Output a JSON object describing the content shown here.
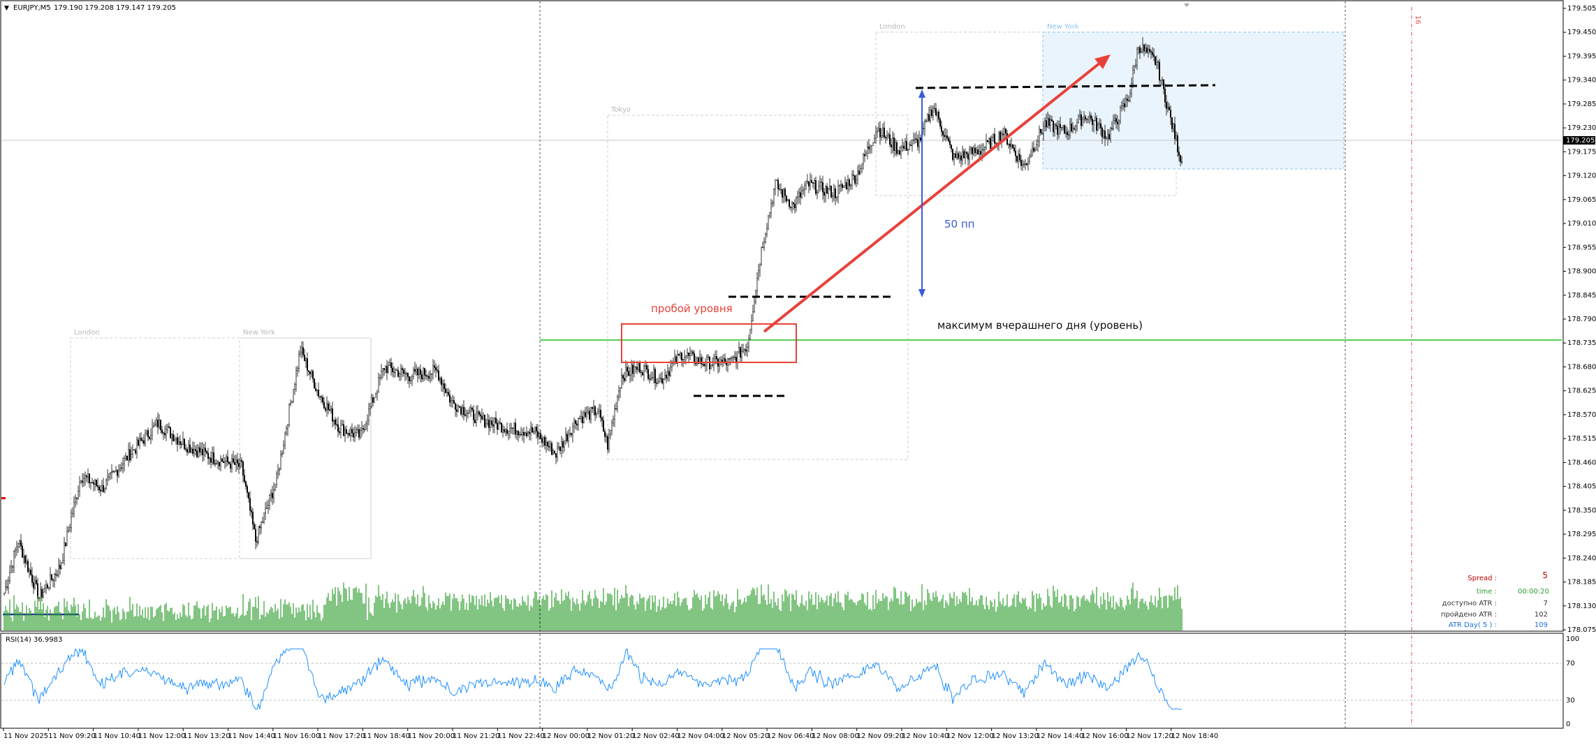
{
  "header": {
    "symbol": "EURJPY,M5",
    "ohlc": "179.190 179.208 179.147 179.205"
  },
  "colors": {
    "up_candle": "#000000",
    "volume": "#2e9e2e",
    "rsi": "#1e90ff",
    "yesterday_high_line": "#22bb22",
    "annotation_red": "#e8413a",
    "annotation_blue": "#3a5bd9",
    "session_ny_fill": "#eaf4fc"
  },
  "price_axis": {
    "ticks": [
      "179.505",
      "179.450",
      "179.395",
      "179.340",
      "179.285",
      "179.230",
      "179.175",
      "179.120",
      "179.065",
      "179.010",
      "178.955",
      "178.900",
      "178.845",
      "178.790",
      "178.735",
      "178.680",
      "178.625",
      "178.570",
      "178.515",
      "178.460",
      "178.405",
      "178.350",
      "178.295",
      "178.240",
      "178.185",
      "178.130",
      "178.075"
    ],
    "current_price": "179.205",
    "range": [
      178.075,
      179.505
    ]
  },
  "time_axis": {
    "labels": [
      "11 Nov 2025",
      "11 Nov 09:20",
      "11 Nov 10:40",
      "11 Nov 12:00",
      "11 Nov 13:20",
      "11 Nov 14:40",
      "11 Nov 16:00",
      "11 Nov 17:20",
      "11 Nov 18:40",
      "11 Nov 20:00",
      "11 Nov 21:20",
      "11 Nov 22:40",
      "12 Nov 00:00",
      "12 Nov 01:20",
      "12 Nov 02:40",
      "12 Nov 04:00",
      "12 Nov 05:20",
      "12 Nov 06:40",
      "12 Nov 08:00",
      "12 Nov 09:20",
      "12 Nov 10:40",
      "12 Nov 12:00",
      "12 Nov 13:20",
      "12 Nov 14:40",
      "12 Nov 16:00",
      "12 Nov 17:20",
      "12 Nov 18:40"
    ]
  },
  "sessions": {
    "day1_london": "London",
    "day1_newyork": "New York",
    "day2_tokyo": "Tokyo",
    "day2_london": "London",
    "day2_newyork": "New York"
  },
  "annotations": {
    "breakout": "пробой уровня",
    "pips": "50 пп",
    "yesterday_high": "максимум вчерашнего дня (уровень)"
  },
  "rsi": {
    "label": "RSI(14) 36.9983",
    "levels": [
      "100",
      "70",
      "30",
      "0"
    ]
  },
  "info_panel": {
    "spread_label": "Spread :",
    "spread_value": "5",
    "time_label": "time :",
    "time_value": "00:00:20",
    "atr_avail_label": "доступно ATR :",
    "atr_avail_value": "7",
    "atr_passed_label": "пройдено ATR :",
    "atr_passed_value": "102",
    "atr_day_label": "ATR Day( 5 ) :",
    "atr_day_value": "109"
  },
  "chart_data": {
    "type": "candlestick",
    "title": "EURJPY,M5",
    "ylim": [
      178.075,
      179.505
    ],
    "keypoints": [
      [
        0,
        178.16
      ],
      [
        10,
        178.28
      ],
      [
        25,
        178.15
      ],
      [
        40,
        178.22
      ],
      [
        55,
        178.43
      ],
      [
        70,
        178.4
      ],
      [
        90,
        178.48
      ],
      [
        110,
        178.55
      ],
      [
        130,
        178.5
      ],
      [
        150,
        178.47
      ],
      [
        170,
        178.45
      ],
      [
        180,
        178.28
      ],
      [
        195,
        178.42
      ],
      [
        212,
        178.72
      ],
      [
        225,
        178.62
      ],
      [
        240,
        178.54
      ],
      [
        255,
        178.52
      ],
      [
        272,
        178.68
      ],
      [
        290,
        178.66
      ],
      [
        310,
        178.67
      ],
      [
        320,
        178.6
      ],
      [
        340,
        178.56
      ],
      [
        360,
        178.54
      ],
      [
        380,
        178.53
      ],
      [
        395,
        178.48
      ],
      [
        410,
        178.56
      ],
      [
        425,
        178.58
      ],
      [
        432,
        178.5
      ],
      [
        442,
        178.66
      ],
      [
        455,
        178.68
      ],
      [
        470,
        178.65
      ],
      [
        485,
        178.71
      ],
      [
        500,
        178.69
      ],
      [
        520,
        178.69
      ],
      [
        532,
        178.73
      ],
      [
        542,
        178.95
      ],
      [
        552,
        179.1
      ],
      [
        565,
        179.05
      ],
      [
        575,
        179.1
      ],
      [
        595,
        179.08
      ],
      [
        610,
        179.12
      ],
      [
        625,
        179.23
      ],
      [
        640,
        179.18
      ],
      [
        655,
        179.2
      ],
      [
        665,
        179.28
      ],
      [
        680,
        179.16
      ],
      [
        700,
        179.18
      ],
      [
        715,
        179.22
      ],
      [
        730,
        179.14
      ],
      [
        745,
        179.24
      ],
      [
        760,
        179.22
      ],
      [
        775,
        179.26
      ],
      [
        790,
        179.21
      ],
      [
        805,
        179.3
      ],
      [
        812,
        179.42
      ],
      [
        825,
        179.38
      ],
      [
        835,
        179.25
      ],
      [
        843,
        179.15
      ]
    ],
    "volumes_note": "green volume histogram along bottom of price pane",
    "rsi_levels": [
      70,
      30
    ]
  }
}
